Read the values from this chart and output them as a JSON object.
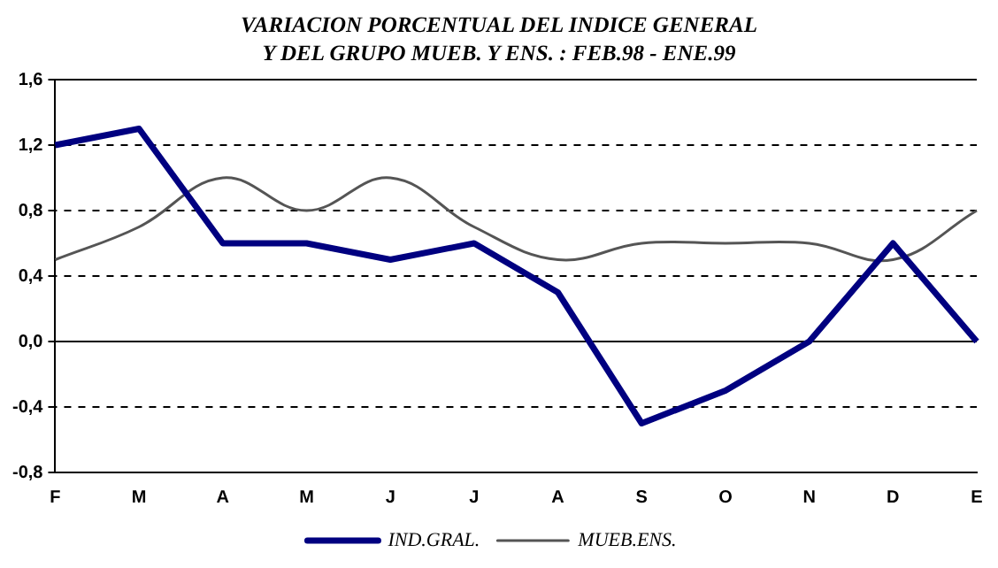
{
  "chart_data": {
    "type": "line",
    "title": "VARIACION PORCENTUAL DEL INDICE GENERAL",
    "subtitle": "Y DEL GRUPO MUEB. Y ENS. : FEB.98 - ENE.99",
    "categories": [
      "F",
      "M",
      "A",
      "M",
      "J",
      "J",
      "A",
      "S",
      "O",
      "N",
      "D",
      "E"
    ],
    "series": [
      {
        "name": "IND.GRAL.",
        "color": "#000080",
        "values": [
          1.2,
          1.3,
          0.6,
          0.6,
          0.5,
          0.6,
          0.3,
          -0.5,
          -0.3,
          0.0,
          0.6,
          0.0
        ]
      },
      {
        "name": "MUEB.ENS.",
        "color": "#555555",
        "values": [
          0.5,
          0.7,
          1.0,
          0.8,
          1.0,
          0.7,
          0.5,
          0.6,
          0.6,
          0.6,
          0.5,
          0.8
        ]
      }
    ],
    "ylim": [
      -0.8,
      1.6
    ],
    "yticks": [
      {
        "value": -0.8,
        "label": "-0,8"
      },
      {
        "value": -0.4,
        "label": "-0,4"
      },
      {
        "value": 0,
        "label": "0,0"
      },
      {
        "value": 0.4,
        "label": "0,4"
      },
      {
        "value": 0.8,
        "label": "0,8"
      },
      {
        "value": 1.2,
        "label": "1,2"
      },
      {
        "value": 1.6,
        "label": "1,6"
      }
    ],
    "grid": "y",
    "legend": "bottom",
    "marker": "none",
    "line_style": "solid"
  }
}
